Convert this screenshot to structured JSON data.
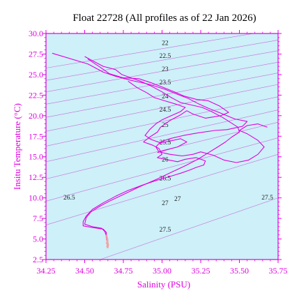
{
  "chart_data": {
    "type": "line",
    "title": "Float 22728  (All profiles as of 22 Jan 2026)",
    "xlabel": "Salinity (PSU)",
    "ylabel": "Insitu Temperature (°C)",
    "xlim": [
      34.25,
      35.75
    ],
    "ylim": [
      2.5,
      30.0
    ],
    "xticks": [
      "34.25",
      "34.50",
      "34.75",
      "35.00",
      "35.25",
      "35.50",
      "35.75"
    ],
    "yticks": [
      "2.5",
      "5.0",
      "7.5",
      "10.0",
      "12.5",
      "15.0",
      "17.5",
      "20.0",
      "22.5",
      "25.0",
      "27.5",
      "30.0"
    ],
    "grid": false,
    "colors": {
      "plot_background": "#cdf0f9",
      "axis": "#e000e0",
      "profile": "#e000e0",
      "deep_points": "#f4a0a0",
      "density_contour": "#c86bd6"
    },
    "density_contours": [
      {
        "sigma": 22,
        "label": "22",
        "points": [
          [
            34.25,
            25.8
          ],
          [
            35.75,
            30.5
          ]
        ]
      },
      {
        "sigma": 22.5,
        "label": "22.5",
        "points": [
          [
            34.25,
            24.3
          ],
          [
            35.75,
            29.2
          ]
        ]
      },
      {
        "sigma": 23,
        "label": "23",
        "points": [
          [
            34.25,
            22.9
          ],
          [
            35.75,
            27.9
          ]
        ]
      },
      {
        "sigma": 23.5,
        "label": "23.5",
        "points": [
          [
            34.25,
            21.4
          ],
          [
            35.75,
            26.5
          ]
        ]
      },
      {
        "sigma": 24,
        "label": "24",
        "points": [
          [
            34.25,
            19.8
          ],
          [
            35.75,
            25.2
          ]
        ]
      },
      {
        "sigma": 24.5,
        "label": "24.5",
        "points": [
          [
            34.25,
            18.1
          ],
          [
            35.75,
            23.8
          ]
        ]
      },
      {
        "sigma": 25,
        "label": "25",
        "points": [
          [
            34.25,
            16.3
          ],
          [
            35.75,
            22.3
          ]
        ]
      },
      {
        "sigma": 25.5,
        "label": "25.5",
        "points": [
          [
            34.25,
            14.4
          ],
          [
            35.75,
            20.7
          ]
        ]
      },
      {
        "sigma": 26,
        "label": "26",
        "points": [
          [
            34.25,
            12.3
          ],
          [
            35.75,
            19.2
          ]
        ]
      },
      {
        "sigma": 26.5,
        "label": "26.5",
        "points": [
          [
            34.25,
            9.6
          ],
          [
            35.75,
            17.3
          ]
        ]
      },
      {
        "sigma": 27,
        "label": "27",
        "points": [
          [
            34.25,
            6.7
          ],
          [
            35.75,
            15.3
          ]
        ]
      },
      {
        "sigma": 27.5,
        "label": "27.5",
        "points": [
          [
            34.6,
            2.5
          ],
          [
            35.75,
            10.0
          ]
        ]
      }
    ],
    "contour_labels": [
      {
        "text": "22",
        "x": 35.02,
        "y": 28.8
      },
      {
        "text": "22.5",
        "x": 35.02,
        "y": 27.2
      },
      {
        "text": "23",
        "x": 35.02,
        "y": 25.6
      },
      {
        "text": "23.5",
        "x": 35.02,
        "y": 24.0
      },
      {
        "text": "24",
        "x": 35.02,
        "y": 22.3
      },
      {
        "text": "24.5",
        "x": 35.02,
        "y": 20.7
      },
      {
        "text": "25",
        "x": 35.02,
        "y": 18.8
      },
      {
        "text": "25.5",
        "x": 35.02,
        "y": 16.7
      },
      {
        "text": "26",
        "x": 35.02,
        "y": 14.6
      },
      {
        "text": "26.5",
        "x": 34.4,
        "y": 10.0
      },
      {
        "text": "26.5",
        "x": 35.02,
        "y": 12.3
      },
      {
        "text": "27",
        "x": 35.02,
        "y": 9.3
      },
      {
        "text": "27",
        "x": 35.1,
        "y": 9.8
      },
      {
        "text": "27.5",
        "x": 35.02,
        "y": 6.1
      },
      {
        "text": "27.5",
        "x": 35.68,
        "y": 10.0
      }
    ],
    "series": [
      {
        "points": [
          [
            34.29,
            27.6
          ],
          [
            34.52,
            26.3
          ],
          [
            34.62,
            25.3
          ],
          [
            34.7,
            24.8
          ],
          [
            34.8,
            24.3
          ],
          [
            34.92,
            23.8
          ],
          [
            35.02,
            23.2
          ],
          [
            35.1,
            22.6
          ],
          [
            35.17,
            22.1
          ],
          [
            35.24,
            21.4
          ],
          [
            35.3,
            20.9
          ],
          [
            35.38,
            20.3
          ],
          [
            35.47,
            19.6
          ],
          [
            35.55,
            19.3
          ],
          [
            35.52,
            18.7
          ],
          [
            35.42,
            18.3
          ],
          [
            35.34,
            18.2
          ],
          [
            35.23,
            17.9
          ],
          [
            35.14,
            17.6
          ],
          [
            35.05,
            17.2
          ],
          [
            34.99,
            16.8
          ],
          [
            34.96,
            16.2
          ],
          [
            34.98,
            15.6
          ],
          [
            35.05,
            15.3
          ],
          [
            35.13,
            15.1
          ],
          [
            35.2,
            15.3
          ],
          [
            35.25,
            15.6
          ],
          [
            35.33,
            15.2
          ],
          [
            35.4,
            14.6
          ],
          [
            35.48,
            14.3
          ],
          [
            35.56,
            14.6
          ],
          [
            35.62,
            15.3
          ],
          [
            35.66,
            16.2
          ],
          [
            35.62,
            17.0
          ],
          [
            35.55,
            17.8
          ],
          [
            35.5,
            18.2
          ],
          [
            35.55,
            18.8
          ],
          [
            35.62,
            19.0
          ],
          [
            35.68,
            18.6
          ]
        ]
      },
      {
        "points": [
          [
            34.52,
            26.9
          ],
          [
            34.6,
            25.9
          ],
          [
            34.66,
            25.1
          ],
          [
            34.75,
            24.6
          ],
          [
            34.85,
            24.5
          ],
          [
            34.93,
            24.0
          ],
          [
            35.0,
            23.5
          ],
          [
            35.08,
            22.9
          ],
          [
            35.14,
            22.4
          ],
          [
            35.22,
            22.0
          ],
          [
            35.3,
            21.8
          ],
          [
            35.37,
            21.2
          ],
          [
            35.43,
            20.4
          ],
          [
            35.38,
            20.0
          ],
          [
            35.28,
            19.7
          ],
          [
            35.2,
            20.2
          ],
          [
            35.16,
            20.6
          ],
          [
            35.12,
            20.1
          ],
          [
            35.05,
            19.4
          ],
          [
            34.99,
            18.6
          ],
          [
            34.97,
            18.0
          ],
          [
            34.92,
            17.4
          ],
          [
            34.88,
            16.8
          ],
          [
            34.94,
            16.4
          ],
          [
            34.98,
            16.0
          ],
          [
            35.0,
            15.3
          ],
          [
            34.97,
            14.9
          ],
          [
            35.02,
            14.7
          ],
          [
            35.1,
            14.4
          ],
          [
            35.15,
            14.7
          ],
          [
            35.22,
            14.9
          ],
          [
            35.28,
            14.5
          ],
          [
            35.27,
            14.0
          ],
          [
            35.22,
            13.7
          ],
          [
            35.18,
            13.4
          ],
          [
            35.12,
            13.0
          ],
          [
            35.05,
            12.6
          ],
          [
            34.96,
            12.1
          ],
          [
            34.88,
            11.6
          ],
          [
            34.78,
            10.9
          ],
          [
            34.7,
            10.2
          ],
          [
            34.62,
            9.4
          ],
          [
            34.55,
            8.6
          ],
          [
            34.51,
            7.8
          ],
          [
            34.49,
            7.1
          ],
          [
            34.49,
            6.6
          ],
          [
            34.55,
            6.4
          ],
          [
            34.62,
            6.2
          ],
          [
            34.64,
            5.8
          ],
          [
            34.64,
            5.2
          ],
          [
            34.65,
            4.8
          ]
        ]
      },
      {
        "points": [
          [
            34.5,
            27.2
          ],
          [
            34.56,
            26.6
          ],
          [
            34.62,
            26.0
          ],
          [
            34.7,
            25.6
          ],
          [
            34.74,
            25.0
          ],
          [
            34.8,
            24.6
          ],
          [
            34.86,
            24.2
          ],
          [
            34.93,
            23.6
          ],
          [
            35.0,
            22.9
          ],
          [
            35.06,
            22.2
          ],
          [
            35.12,
            21.6
          ],
          [
            35.19,
            21.3
          ],
          [
            35.26,
            21.0
          ],
          [
            35.32,
            20.5
          ],
          [
            35.39,
            19.8
          ],
          [
            35.44,
            19.2
          ],
          [
            35.49,
            18.6
          ],
          [
            35.5,
            18.0
          ],
          [
            35.45,
            17.4
          ],
          [
            35.41,
            16.8
          ],
          [
            35.36,
            16.2
          ],
          [
            35.3,
            15.5
          ],
          [
            35.24,
            14.8
          ],
          [
            35.16,
            14.0
          ],
          [
            35.07,
            13.2
          ],
          [
            34.97,
            12.3
          ],
          [
            34.86,
            11.4
          ],
          [
            34.76,
            10.5
          ],
          [
            34.67,
            9.7
          ],
          [
            34.6,
            9.0
          ],
          [
            34.54,
            8.3
          ],
          [
            34.51,
            7.6
          ],
          [
            34.5,
            6.8
          ],
          [
            34.55,
            6.5
          ],
          [
            34.61,
            6.3
          ],
          [
            34.63,
            5.9
          ],
          [
            34.64,
            5.4
          ],
          [
            34.64,
            4.9
          ]
        ]
      },
      {
        "points": [
          [
            34.78,
            24.2
          ],
          [
            34.84,
            23.4
          ],
          [
            34.9,
            22.8
          ],
          [
            34.95,
            22.2
          ],
          [
            35.02,
            21.8
          ],
          [
            35.09,
            21.4
          ],
          [
            35.15,
            21.0
          ],
          [
            35.12,
            20.5
          ],
          [
            35.06,
            20.0
          ],
          [
            35.0,
            19.5
          ],
          [
            34.96,
            19.0
          ],
          [
            34.92,
            18.3
          ],
          [
            34.89,
            17.6
          ],
          [
            34.93,
            17.1
          ],
          [
            34.99,
            16.7
          ],
          [
            35.05,
            16.9
          ],
          [
            35.12,
            17.2
          ],
          [
            35.16,
            16.8
          ],
          [
            35.1,
            16.2
          ],
          [
            35.02,
            15.8
          ],
          [
            34.97,
            15.5
          ]
        ]
      }
    ],
    "deep_points": [
      [
        34.64,
        5.4
      ],
      [
        34.643,
        5.2
      ],
      [
        34.645,
        5.0
      ],
      [
        34.646,
        4.8
      ],
      [
        34.647,
        4.6
      ],
      [
        34.648,
        4.4
      ],
      [
        34.649,
        4.2
      ],
      [
        34.648,
        4.0
      ],
      [
        34.646,
        4.9
      ],
      [
        34.644,
        4.5
      ],
      [
        34.65,
        4.3
      ],
      [
        34.647,
        4.1
      ]
    ]
  }
}
